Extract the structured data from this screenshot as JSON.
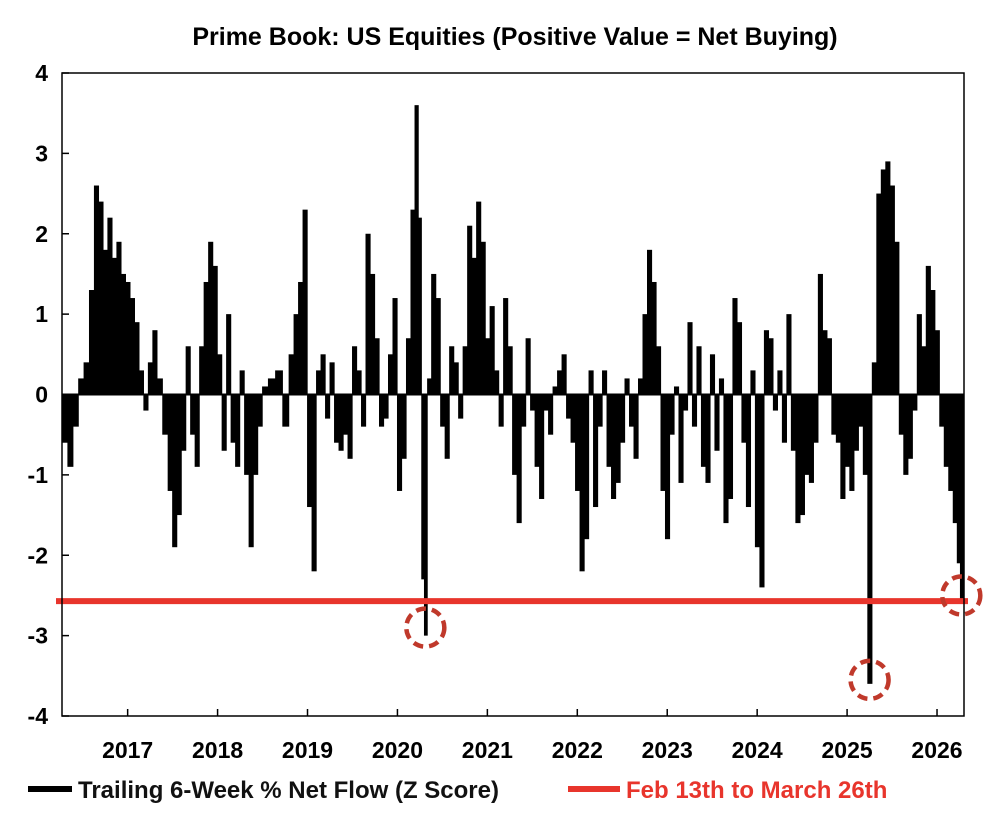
{
  "chart_data": {
    "type": "bar",
    "title": "Prime Book: US Equities (Positive Value = Net Buying)",
    "xlabel": "",
    "ylabel": "",
    "ylim": [
      -4,
      4
    ],
    "yticks": [
      4,
      3,
      2,
      1,
      0,
      -1,
      -2,
      -3,
      -4
    ],
    "ytick_labels": [
      "4",
      "3",
      "2",
      "1",
      "0",
      "-1",
      "-2",
      "-3",
      "-4"
    ],
    "xlim": [
      2016.27,
      2026.3
    ],
    "xticks": [
      2017,
      2018,
      2019,
      2020,
      2021,
      2022,
      2023,
      2024,
      2025,
      2026
    ],
    "xtick_labels": [
      "2017",
      "2018",
      "2019",
      "2020",
      "2021",
      "2022",
      "2023",
      "2024",
      "2025",
      "2026"
    ],
    "grid": false,
    "legend_position": "bottom",
    "series": [
      {
        "name": "Trailing 6-Week % Net Flow (Z Score)",
        "color": "#000000",
        "type": "bar",
        "points": [
          [
            2016.3,
            -0.6
          ],
          [
            2016.36,
            -0.9
          ],
          [
            2016.42,
            -0.4
          ],
          [
            2016.48,
            0.2
          ],
          [
            2016.54,
            0.4
          ],
          [
            2016.6,
            1.3
          ],
          [
            2016.65,
            2.6
          ],
          [
            2016.7,
            2.4
          ],
          [
            2016.75,
            1.8
          ],
          [
            2016.8,
            2.2
          ],
          [
            2016.85,
            1.7
          ],
          [
            2016.9,
            1.9
          ],
          [
            2016.95,
            1.5
          ],
          [
            2017.0,
            1.4
          ],
          [
            2017.05,
            1.2
          ],
          [
            2017.1,
            0.9
          ],
          [
            2017.15,
            0.3
          ],
          [
            2017.2,
            -0.2
          ],
          [
            2017.25,
            0.4
          ],
          [
            2017.3,
            0.8
          ],
          [
            2017.35,
            0.2
          ],
          [
            2017.42,
            -0.5
          ],
          [
            2017.47,
            -1.2
          ],
          [
            2017.52,
            -1.9
          ],
          [
            2017.57,
            -1.5
          ],
          [
            2017.62,
            -0.7
          ],
          [
            2017.67,
            0.6
          ],
          [
            2017.72,
            -0.5
          ],
          [
            2017.77,
            -0.9
          ],
          [
            2017.82,
            0.6
          ],
          [
            2017.87,
            1.4
          ],
          [
            2017.92,
            1.9
          ],
          [
            2017.97,
            1.6
          ],
          [
            2018.02,
            0.5
          ],
          [
            2018.07,
            -0.7
          ],
          [
            2018.12,
            1.0
          ],
          [
            2018.17,
            -0.6
          ],
          [
            2018.22,
            -0.9
          ],
          [
            2018.27,
            0.3
          ],
          [
            2018.32,
            -1.0
          ],
          [
            2018.37,
            -1.9
          ],
          [
            2018.42,
            -1.0
          ],
          [
            2018.47,
            -0.4
          ],
          [
            2018.52,
            0.1
          ],
          [
            2018.6,
            0.2
          ],
          [
            2018.68,
            0.3
          ],
          [
            2018.76,
            -0.4
          ],
          [
            2018.82,
            0.5
          ],
          [
            2018.87,
            1.0
          ],
          [
            2018.92,
            1.4
          ],
          [
            2018.97,
            2.3
          ],
          [
            2019.02,
            -1.4
          ],
          [
            2019.07,
            -2.2
          ],
          [
            2019.12,
            0.3
          ],
          [
            2019.17,
            0.5
          ],
          [
            2019.22,
            -0.3
          ],
          [
            2019.27,
            0.4
          ],
          [
            2019.32,
            -0.6
          ],
          [
            2019.37,
            -0.7
          ],
          [
            2019.42,
            -0.5
          ],
          [
            2019.47,
            -0.8
          ],
          [
            2019.52,
            0.6
          ],
          [
            2019.57,
            0.3
          ],
          [
            2019.62,
            -0.4
          ],
          [
            2019.67,
            2.0
          ],
          [
            2019.72,
            1.5
          ],
          [
            2019.77,
            0.7
          ],
          [
            2019.82,
            -0.4
          ],
          [
            2019.87,
            -0.3
          ],
          [
            2019.92,
            0.5
          ],
          [
            2019.97,
            1.2
          ],
          [
            2020.02,
            -1.2
          ],
          [
            2020.07,
            -0.8
          ],
          [
            2020.12,
            0.7
          ],
          [
            2020.17,
            2.3
          ],
          [
            2020.21,
            3.6
          ],
          [
            2020.25,
            2.2
          ],
          [
            2020.28,
            -2.3
          ],
          [
            2020.31,
            -3.0
          ],
          [
            2020.35,
            0.2
          ],
          [
            2020.4,
            1.5
          ],
          [
            2020.45,
            1.2
          ],
          [
            2020.5,
            -0.4
          ],
          [
            2020.55,
            -0.8
          ],
          [
            2020.6,
            0.6
          ],
          [
            2020.65,
            0.4
          ],
          [
            2020.7,
            -0.3
          ],
          [
            2020.75,
            0.6
          ],
          [
            2020.8,
            2.1
          ],
          [
            2020.85,
            1.7
          ],
          [
            2020.9,
            2.4
          ],
          [
            2020.95,
            1.9
          ],
          [
            2021.0,
            0.7
          ],
          [
            2021.05,
            1.1
          ],
          [
            2021.1,
            0.3
          ],
          [
            2021.15,
            -0.4
          ],
          [
            2021.2,
            1.2
          ],
          [
            2021.25,
            0.6
          ],
          [
            2021.3,
            -1.0
          ],
          [
            2021.35,
            -1.6
          ],
          [
            2021.4,
            -0.4
          ],
          [
            2021.45,
            0.7
          ],
          [
            2021.5,
            -0.2
          ],
          [
            2021.55,
            -0.9
          ],
          [
            2021.6,
            -1.3
          ],
          [
            2021.65,
            -0.2
          ],
          [
            2021.7,
            -0.5
          ],
          [
            2021.75,
            0.1
          ],
          [
            2021.8,
            0.3
          ],
          [
            2021.85,
            0.5
          ],
          [
            2021.9,
            -0.3
          ],
          [
            2021.95,
            -0.6
          ],
          [
            2022.0,
            -1.2
          ],
          [
            2022.05,
            -2.2
          ],
          [
            2022.1,
            -1.8
          ],
          [
            2022.15,
            0.3
          ],
          [
            2022.2,
            -1.4
          ],
          [
            2022.25,
            -0.4
          ],
          [
            2022.3,
            0.3
          ],
          [
            2022.35,
            -0.9
          ],
          [
            2022.4,
            -1.3
          ],
          [
            2022.45,
            -1.1
          ],
          [
            2022.5,
            -0.6
          ],
          [
            2022.55,
            0.2
          ],
          [
            2022.6,
            -0.4
          ],
          [
            2022.65,
            -0.8
          ],
          [
            2022.7,
            0.2
          ],
          [
            2022.75,
            1.0
          ],
          [
            2022.8,
            1.8
          ],
          [
            2022.85,
            1.4
          ],
          [
            2022.9,
            0.6
          ],
          [
            2022.95,
            -1.2
          ],
          [
            2023.0,
            -1.8
          ],
          [
            2023.05,
            -0.5
          ],
          [
            2023.1,
            0.1
          ],
          [
            2023.15,
            -1.1
          ],
          [
            2023.2,
            -0.2
          ],
          [
            2023.25,
            0.9
          ],
          [
            2023.3,
            -0.4
          ],
          [
            2023.35,
            0.6
          ],
          [
            2023.4,
            -0.9
          ],
          [
            2023.45,
            -1.1
          ],
          [
            2023.5,
            0.5
          ],
          [
            2023.55,
            -0.7
          ],
          [
            2023.6,
            0.2
          ],
          [
            2023.65,
            -1.6
          ],
          [
            2023.7,
            -1.3
          ],
          [
            2023.75,
            1.2
          ],
          [
            2023.8,
            0.9
          ],
          [
            2023.85,
            -0.6
          ],
          [
            2023.9,
            -1.4
          ],
          [
            2023.95,
            0.3
          ],
          [
            2024.0,
            -1.9
          ],
          [
            2024.05,
            -2.4
          ],
          [
            2024.1,
            0.8
          ],
          [
            2024.15,
            0.7
          ],
          [
            2024.2,
            -0.2
          ],
          [
            2024.25,
            0.3
          ],
          [
            2024.3,
            -0.6
          ],
          [
            2024.35,
            1.0
          ],
          [
            2024.4,
            -0.7
          ],
          [
            2024.45,
            -1.6
          ],
          [
            2024.5,
            -1.5
          ],
          [
            2024.55,
            -1.0
          ],
          [
            2024.6,
            -1.1
          ],
          [
            2024.65,
            -0.6
          ],
          [
            2024.7,
            1.5
          ],
          [
            2024.75,
            0.8
          ],
          [
            2024.8,
            0.7
          ],
          [
            2024.85,
            -0.5
          ],
          [
            2024.9,
            -0.6
          ],
          [
            2024.95,
            -1.3
          ],
          [
            2025.0,
            -0.9
          ],
          [
            2025.05,
            -1.2
          ],
          [
            2025.1,
            -0.7
          ],
          [
            2025.15,
            -0.4
          ],
          [
            2025.2,
            -1.0
          ],
          [
            2025.25,
            -3.6
          ],
          [
            2025.3,
            0.4
          ],
          [
            2025.35,
            2.5
          ],
          [
            2025.4,
            2.8
          ],
          [
            2025.45,
            2.9
          ],
          [
            2025.5,
            2.6
          ],
          [
            2025.55,
            1.9
          ],
          [
            2025.6,
            -0.5
          ],
          [
            2025.65,
            -1.0
          ],
          [
            2025.7,
            -0.8
          ],
          [
            2025.75,
            -0.2
          ],
          [
            2025.8,
            1.0
          ],
          [
            2025.85,
            0.6
          ],
          [
            2025.9,
            1.6
          ],
          [
            2025.95,
            1.3
          ],
          [
            2026.0,
            0.8
          ],
          [
            2026.05,
            -0.4
          ],
          [
            2026.1,
            -0.9
          ],
          [
            2026.15,
            -1.2
          ],
          [
            2026.2,
            -1.6
          ],
          [
            2026.24,
            -2.1
          ],
          [
            2026.27,
            -2.6
          ]
        ]
      },
      {
        "name": "Feb 13th to March 26th",
        "color": "#e8352c",
        "type": "hline",
        "value": -2.57
      }
    ],
    "annotations": [
      {
        "type": "circle",
        "x": 2020.31,
        "y": -2.9,
        "color": "#c0392b"
      },
      {
        "type": "circle",
        "x": 2025.25,
        "y": -3.55,
        "color": "#c0392b"
      },
      {
        "type": "circle",
        "x": 2026.27,
        "y": -2.5,
        "color": "#c0392b"
      }
    ]
  }
}
